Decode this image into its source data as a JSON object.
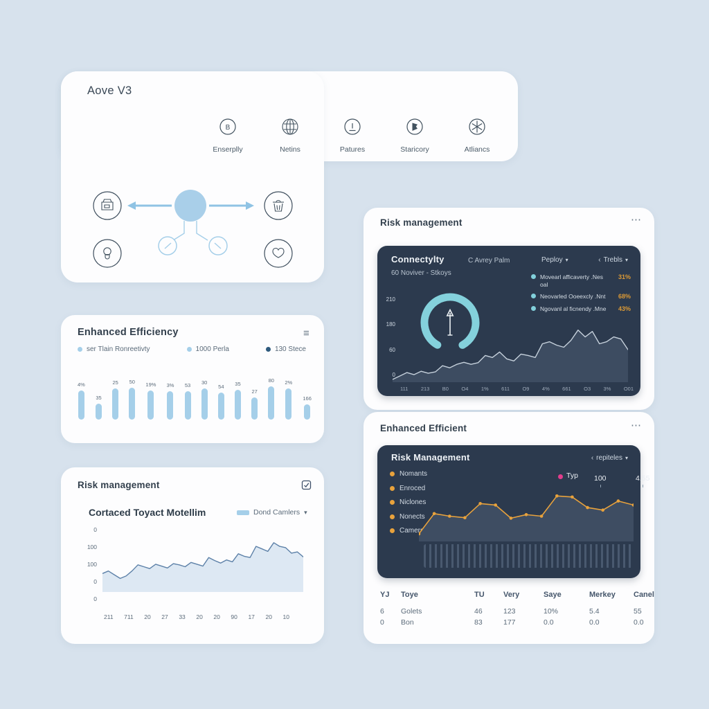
{
  "colors": {
    "background": "#d7e2ed",
    "card": "#fdfdfe",
    "panel_dark": "#2c3a4e",
    "accent_light_blue": "#a5cfe9",
    "accent_teal": "#82d0db",
    "accent_orange": "#e8a23c",
    "accent_pink": "#e23d8c",
    "accent_dark_blue": "#2e5a7d",
    "chart_line_light": "#5d81a8",
    "chart_fill_light": "#dde8f3",
    "chart_line_dark": "#c6d1dc",
    "chart_fill_dark": "#3d4c61"
  },
  "icons": {
    "hamburger": "≡",
    "dots": "⋯",
    "chevron_down": "▾",
    "chevron_left": "‹"
  },
  "flow_card": {
    "title": "Aove V3",
    "nav": [
      {
        "icon": "b-badge-icon",
        "label": "Enserplly"
      },
      {
        "icon": "globe-icon",
        "label": "Netins"
      },
      {
        "icon": "clock-icon",
        "label": "Patures"
      },
      {
        "icon": "pen-icon",
        "label": "Staricory"
      },
      {
        "icon": "asterisk-icon",
        "label": "Atliancs"
      }
    ],
    "diagram_nodes": [
      "store",
      "hub",
      "trash",
      "bulb",
      "checkpoint-left",
      "checkpoint-right",
      "heart"
    ]
  },
  "efficiency_card": {
    "title": "Enhanced Efficiency",
    "legend": [
      {
        "label": "ser Tlain Ronreetivty",
        "color": "#a5cfe9"
      },
      {
        "label": "1000 Perla",
        "color": "#a5cfe9"
      },
      {
        "label": "130 Stece",
        "color": "#2e5a7d"
      }
    ],
    "chart_data": {
      "type": "bar",
      "bars": [
        {
          "label": "4%",
          "value": 84
        },
        {
          "label": "35",
          "value": 46
        },
        {
          "label": "25",
          "value": 90
        },
        {
          "label": "50",
          "value": 92
        },
        {
          "label": "19%",
          "value": 84
        },
        {
          "label": "3%",
          "value": 82
        },
        {
          "label": "53",
          "value": 82
        },
        {
          "label": "30",
          "value": 90
        },
        {
          "label": "54",
          "value": 78
        },
        {
          "label": "35",
          "value": 86
        },
        {
          "label": "27",
          "value": 64
        },
        {
          "label": "80",
          "value": 96
        },
        {
          "label": "2%",
          "value": 90
        },
        {
          "label": "166",
          "value": 44
        }
      ]
    }
  },
  "risk_card_left": {
    "title": "Risk management",
    "subtitle": "Cortaced Toyact Motellim",
    "legend_label": "Dond Camlers",
    "chart_data": {
      "type": "area",
      "y_labels": [
        "0",
        "100",
        "100",
        "0",
        "0"
      ],
      "x_labels": [
        "211",
        "711",
        "20",
        "27",
        "33",
        "20",
        "20",
        "90",
        "17",
        "20",
        "10"
      ],
      "ymax": 100,
      "values": [
        30,
        34,
        28,
        22,
        26,
        34,
        44,
        41,
        38,
        45,
        42,
        39,
        46,
        44,
        41,
        48,
        45,
        42,
        56,
        51,
        47,
        52,
        49,
        62,
        58,
        56,
        74,
        70,
        66,
        80,
        74,
        72,
        63,
        65,
        57
      ]
    }
  },
  "risk_card_right": {
    "title": "Risk management",
    "panel": {
      "title": "Connectylty",
      "subtitle": "C Avrey Palm",
      "control_1": "Peploy",
      "control_2": "Trebls",
      "period": "60 Noviver - Stkoys",
      "legend": [
        {
          "label": "Movearl afficaverty .Nes",
          "line2": "oal",
          "value": "31%"
        },
        {
          "label": "Neovarled Ooeexcly .Nnt",
          "line2": "",
          "value": "68%"
        },
        {
          "label": "Ngovanl al ficnendy .Mne",
          "line2": "",
          "value": "43%"
        }
      ],
      "chart_data": {
        "type": "area",
        "y_labels": [
          "210",
          "180",
          "60",
          "0"
        ],
        "x_labels": [
          "111",
          "213",
          "B0",
          "O4",
          "1%",
          "611",
          "O9",
          "4%",
          "661",
          "O3",
          "3%",
          "O01"
        ],
        "ymax": 210,
        "values": [
          8,
          18,
          28,
          22,
          32,
          26,
          30,
          48,
          42,
          52,
          58,
          52,
          57,
          78,
          72,
          88,
          68,
          62,
          82,
          78,
          72,
          112,
          118,
          108,
          102,
          122,
          152,
          132,
          148,
          112,
          118,
          132,
          126,
          95
        ],
        "gauge": {
          "shape": "open-ring",
          "color": "#82d0db",
          "arrow": "up"
        }
      }
    }
  },
  "efficient_card": {
    "title": "Enhanced Efficient",
    "panel": {
      "title": "Risk Management",
      "control": "repiteles",
      "legend": [
        {
          "label": "Nomants"
        },
        {
          "label": "Enroced"
        },
        {
          "label": "Niclones"
        },
        {
          "label": "Nonects"
        },
        {
          "label": "Camers"
        }
      ],
      "stat": {
        "label": "Typ",
        "v1": "100",
        "v2": "4.55"
      },
      "chart_data": {
        "type": "line",
        "ymax": 100,
        "marker_color": "#e8a23c",
        "values": [
          15,
          55,
          50,
          47,
          75,
          72,
          46,
          53,
          50,
          90,
          88,
          67,
          62,
          80,
          72
        ]
      }
    },
    "table": {
      "headers": [
        "YJ",
        "Toye",
        "TU",
        "Very",
        "Saye",
        "Merkey",
        "Canel"
      ],
      "rows": [
        [
          "6",
          "Golets",
          "46",
          "123",
          "10%",
          "5.4",
          "55"
        ],
        [
          "0",
          "Bon",
          "83",
          "177",
          "0.0",
          "0.0",
          "0.0"
        ]
      ]
    }
  }
}
